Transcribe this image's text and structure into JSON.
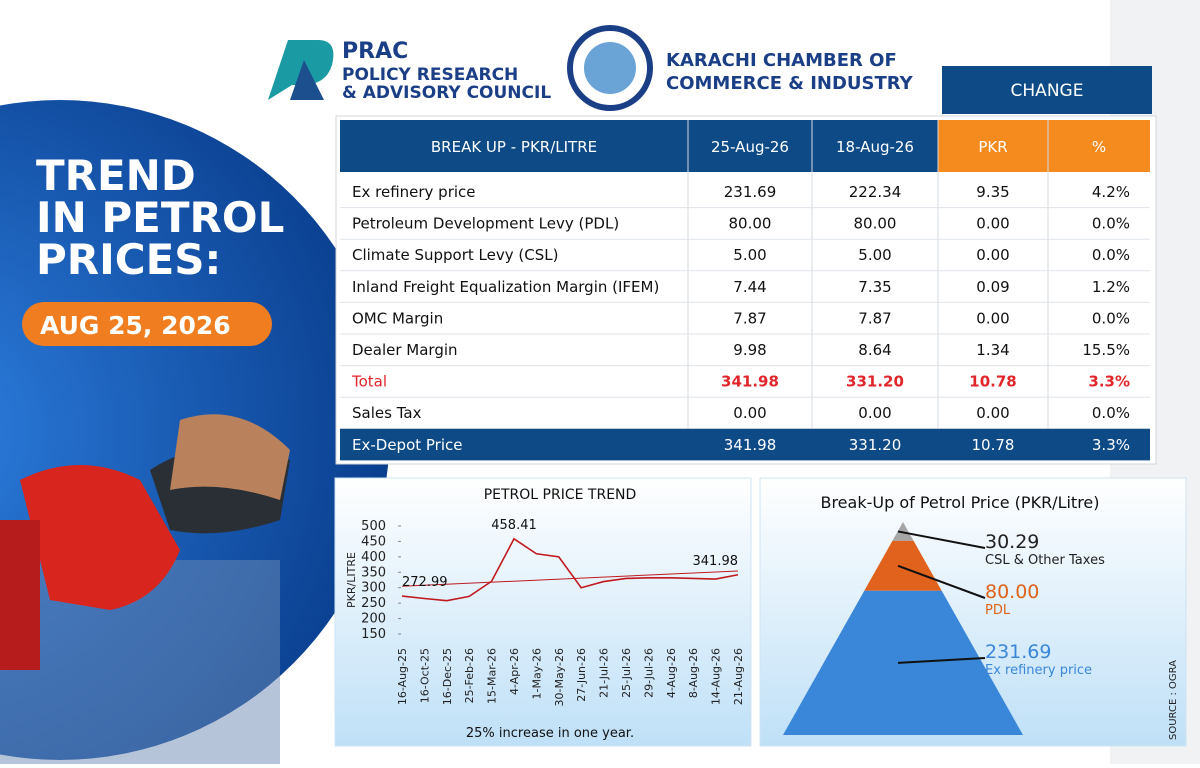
{
  "header": {
    "title_lines": [
      "TREND",
      "IN PETROL",
      "PRICES:"
    ],
    "date": "AUG 25, 2026",
    "prac": {
      "name": "PRAC",
      "lines": [
        "POLICY RESEARCH",
        "& ADVISORY COUNCIL"
      ]
    },
    "kcci": {
      "lines": [
        "KARACHI CHAMBER OF",
        "COMMERCE & INDUSTRY"
      ]
    }
  },
  "table": {
    "group_header": "CHANGE",
    "columns": [
      "BREAK UP - PKR/LITRE",
      "25-Aug-26",
      "18-Aug-26",
      "PKR",
      "%"
    ],
    "rows": [
      [
        "Ex refinery price",
        "231.69",
        "222.34",
        "9.35",
        "4.2%"
      ],
      [
        "Petroleum Development Levy (PDL)",
        "80.00",
        "80.00",
        "0.00",
        "0.0%"
      ],
      [
        "Climate Support Levy (CSL)",
        "5.00",
        "5.00",
        "0.00",
        "0.0%"
      ],
      [
        "Inland Freight Equalization Margin (IFEM)",
        "7.44",
        "7.35",
        "0.09",
        "1.2%"
      ],
      [
        "OMC Margin",
        "7.87",
        "7.87",
        "0.00",
        "0.0%"
      ],
      [
        "Dealer Margin",
        "9.98",
        "8.64",
        "1.34",
        "15.5%"
      ],
      [
        "Total",
        "341.98",
        "331.20",
        "10.78",
        "3.3%"
      ],
      [
        "Sales Tax",
        "0.00",
        "0.00",
        "0.00",
        "0.0%"
      ],
      [
        "Ex-Depot Price",
        "341.98",
        "331.20",
        "10.78",
        "3.3%"
      ]
    ]
  },
  "chart_data": [
    {
      "type": "line",
      "title": "PETROL PRICE TREND",
      "y_label": "PKR/LITRE",
      "subtitle": "25% increase in one year.",
      "categories": [
        "16-Aug-25",
        "16-Oct-25",
        "16-Dec-25",
        "25-Feb-26",
        "15-Mar-26",
        "4-Apr-26",
        "1-May-26",
        "30-May-26",
        "27-Jun-26",
        "21-Jul-26",
        "25-Jul-26",
        "29-Jul-26",
        "4-Aug-26",
        "8-Aug-26",
        "14-Aug-26",
        "21-Aug-26"
      ],
      "values": [
        272.99,
        265,
        258,
        272,
        321,
        458.41,
        410,
        400,
        300,
        320,
        330,
        332,
        332,
        330,
        328,
        341.98
      ],
      "value_labels": [
        "272.99",
        null,
        null,
        null,
        null,
        "458.41",
        null,
        null,
        null,
        null,
        null,
        null,
        null,
        null,
        null,
        "341.98"
      ],
      "color": "#c0191f",
      "trendline": true,
      "ylim": [
        150,
        500
      ],
      "yticks": [
        150,
        200,
        250,
        300,
        350,
        400,
        450,
        500
      ]
    },
    {
      "type": "pyramid",
      "title": "Break-Up of Petrol Price (PKR/Litre)",
      "categories": [
        "CSL & Other Taxes",
        "PDL",
        "Ex refinery price"
      ],
      "values": [
        30.29,
        80,
        231.69
      ],
      "value_labels": [
        "30.29",
        "80.00",
        "231.69"
      ],
      "colors": [
        "#a6a6a6",
        "#e0621c",
        "#3a86d8"
      ],
      "label_colors": [
        "#222222",
        "#e0621c",
        "#3a86d8"
      ]
    }
  ],
  "source": "SOURCE : OGRA"
}
